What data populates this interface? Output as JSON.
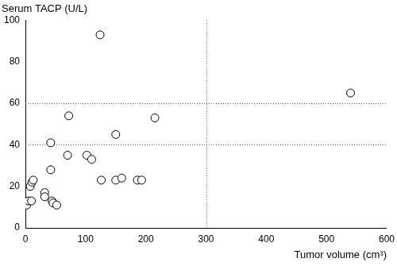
{
  "chart_data": {
    "type": "scatter",
    "x_label": "Tumor volume (cm³)",
    "y_label": "Serum TACP (U/L)",
    "x": [
      2,
      5,
      10,
      8,
      11,
      13,
      32,
      32,
      42,
      42,
      44,
      46,
      52,
      72,
      70,
      102,
      110,
      124,
      126,
      150,
      150,
      160,
      186,
      193,
      215,
      540
    ],
    "values": [
      11,
      13,
      13,
      20,
      22,
      23,
      17,
      15,
      41,
      28,
      13,
      12,
      11,
      54,
      35,
      35,
      33,
      93,
      23,
      45,
      23,
      24,
      23,
      23,
      53,
      65
    ],
    "color": "#000000",
    "marker": "circle-open",
    "xlim": [
      0,
      600
    ],
    "xticks": [
      0,
      100,
      200,
      300,
      400,
      500,
      600
    ],
    "ylim": [
      0,
      100
    ],
    "yticks": [
      0,
      20,
      40,
      60,
      80,
      100
    ],
    "hlines": [
      40,
      60
    ],
    "vlines": [
      300
    ],
    "grid": false
  }
}
